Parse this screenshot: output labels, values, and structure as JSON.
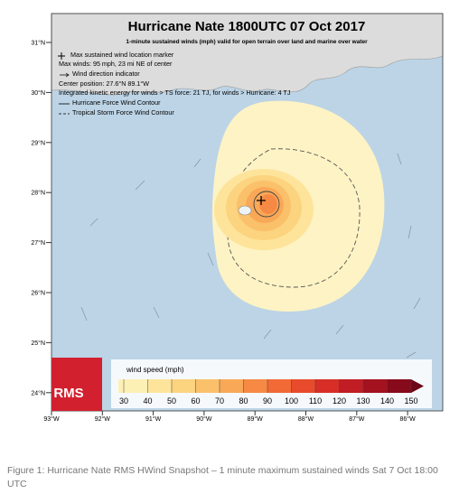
{
  "map": {
    "title": "Hurricane Nate 1800UTC 07 Oct 2017",
    "subtitle": "1-minute sustained winds (mph) valid for open terrain over land and marine over water",
    "legend": [
      "Max sustained wind location marker",
      "Max winds: 95 mph, 23 mi NE of center",
      "Wind direction indicator",
      "Center position: 27.6°N 89.1°W",
      "Integrated kinetic energy for winds > TS force: 21 TJ, for winds > Hurricane: 4 TJ",
      "Hurricane Force Wind Contour",
      "Tropical Storm Force Wind Contour"
    ],
    "lat_labels": [
      "31°N",
      "30°N",
      "29°N",
      "28°N",
      "27°N",
      "26°N",
      "25°N",
      "24°N"
    ],
    "lon_labels": [
      "93°W",
      "92°W",
      "91°W",
      "90°W",
      "89°W",
      "88°W",
      "87°W",
      "86°W"
    ],
    "colorbar": {
      "title": "wind speed (mph)",
      "ticks": [
        30,
        40,
        50,
        60,
        70,
        80,
        90,
        100,
        110,
        120,
        130,
        140,
        150
      ],
      "colors": [
        "#fdf0b5",
        "#fde49a",
        "#fcd37e",
        "#fbc06a",
        "#f9a857",
        "#f68a44",
        "#f26a36",
        "#e84a2c",
        "#d72f27",
        "#c01d24",
        "#a4111f",
        "#860a1b",
        "#6d0616"
      ]
    },
    "logo": "RMS"
  },
  "caption": "Figure 1: Hurricane Nate RMS HWind Snapshot – 1 minute maximum sustained winds Sat 7 Oct 18:00 UTC"
}
